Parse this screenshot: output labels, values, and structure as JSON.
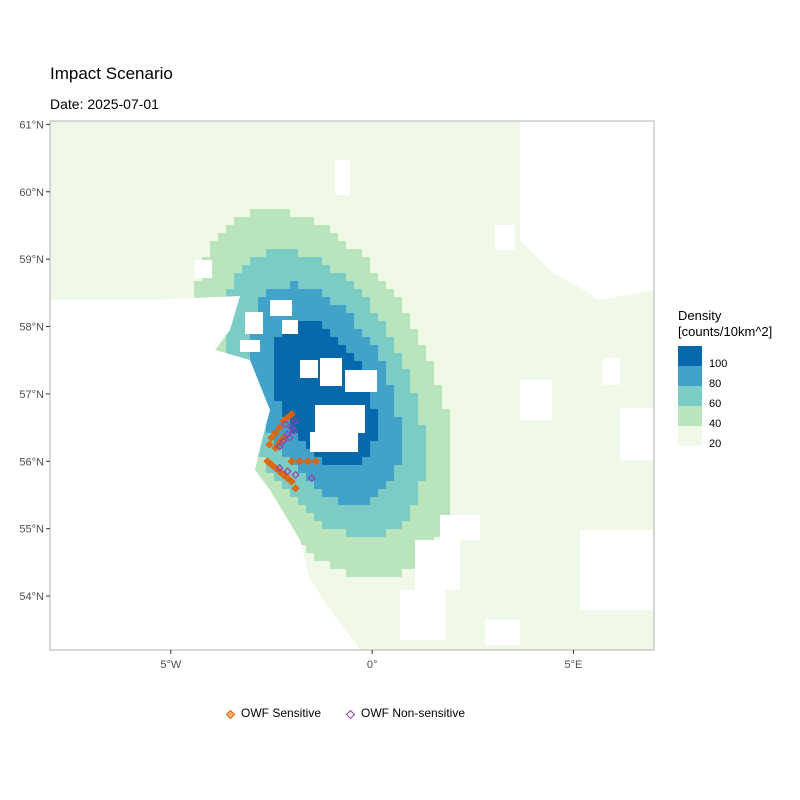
{
  "title": "Impact Scenario",
  "subtitle": "Date: 2025-07-01",
  "legend": {
    "title_line1": "Density",
    "title_line2": "[counts/10km^2]",
    "items": [
      {
        "label": "100",
        "color": "#0868ac"
      },
      {
        "label": "80",
        "color": "#43a2ca"
      },
      {
        "label": "60",
        "color": "#7bccc4"
      },
      {
        "label": "40",
        "color": "#bae4bc"
      },
      {
        "label": "20",
        "color": "#f0f9e8"
      }
    ]
  },
  "points_legend": [
    {
      "label": "OWF Sensitive",
      "color": "#e66101"
    },
    {
      "label": "OWF Non-sensitive",
      "color": "#8e44ad"
    }
  ],
  "chart_data": {
    "type": "heatmap",
    "title": "Impact Scenario",
    "subtitle": "Date: 2025-07-01",
    "xlabel": "",
    "ylabel": "",
    "x_ticks": [
      "5°W",
      "0°",
      "5°E"
    ],
    "y_ticks": [
      "61°N",
      "60°N",
      "59°N",
      "58°N",
      "57°N",
      "56°N",
      "55°N",
      "54°N"
    ],
    "xlim": [
      -8,
      7
    ],
    "ylim": [
      53.2,
      61.05
    ],
    "grid": false,
    "legend_position": "right",
    "density_field": {
      "peak_lon": -1.2,
      "peak_lat": 57.0,
      "peak_value": 110,
      "levels": [
        20,
        40,
        60,
        80,
        100
      ]
    },
    "series": [
      {
        "name": "OWF Sensitive",
        "points": [
          [
            -2.0,
            56.7
          ],
          [
            -2.1,
            56.65
          ],
          [
            -2.2,
            56.6
          ],
          [
            -2.3,
            56.5
          ],
          [
            -2.4,
            56.42
          ],
          [
            -2.5,
            56.35
          ],
          [
            -2.55,
            56.25
          ],
          [
            -2.4,
            56.2
          ],
          [
            -2.3,
            56.28
          ],
          [
            -2.2,
            56.35
          ],
          [
            -2.6,
            56.0
          ],
          [
            -2.5,
            55.95
          ],
          [
            -2.4,
            55.9
          ],
          [
            -2.3,
            55.85
          ],
          [
            -2.2,
            55.8
          ],
          [
            -2.1,
            55.75
          ],
          [
            -2.0,
            55.7
          ],
          [
            -1.9,
            55.6
          ],
          [
            -2.0,
            56.0
          ],
          [
            -1.8,
            56.0
          ],
          [
            -1.6,
            56.0
          ],
          [
            -1.4,
            56.0
          ]
        ]
      },
      {
        "name": "OWF Non-sensitive",
        "points": [
          [
            -1.9,
            56.6
          ],
          [
            -2.0,
            56.5
          ],
          [
            -2.1,
            56.4
          ],
          [
            -2.2,
            56.3
          ],
          [
            -2.3,
            56.22
          ],
          [
            -1.95,
            56.45
          ],
          [
            -2.15,
            56.55
          ],
          [
            -2.05,
            56.35
          ],
          [
            -2.3,
            55.9
          ],
          [
            -2.1,
            55.85
          ],
          [
            -1.9,
            55.8
          ],
          [
            -1.5,
            55.75
          ]
        ]
      }
    ]
  }
}
